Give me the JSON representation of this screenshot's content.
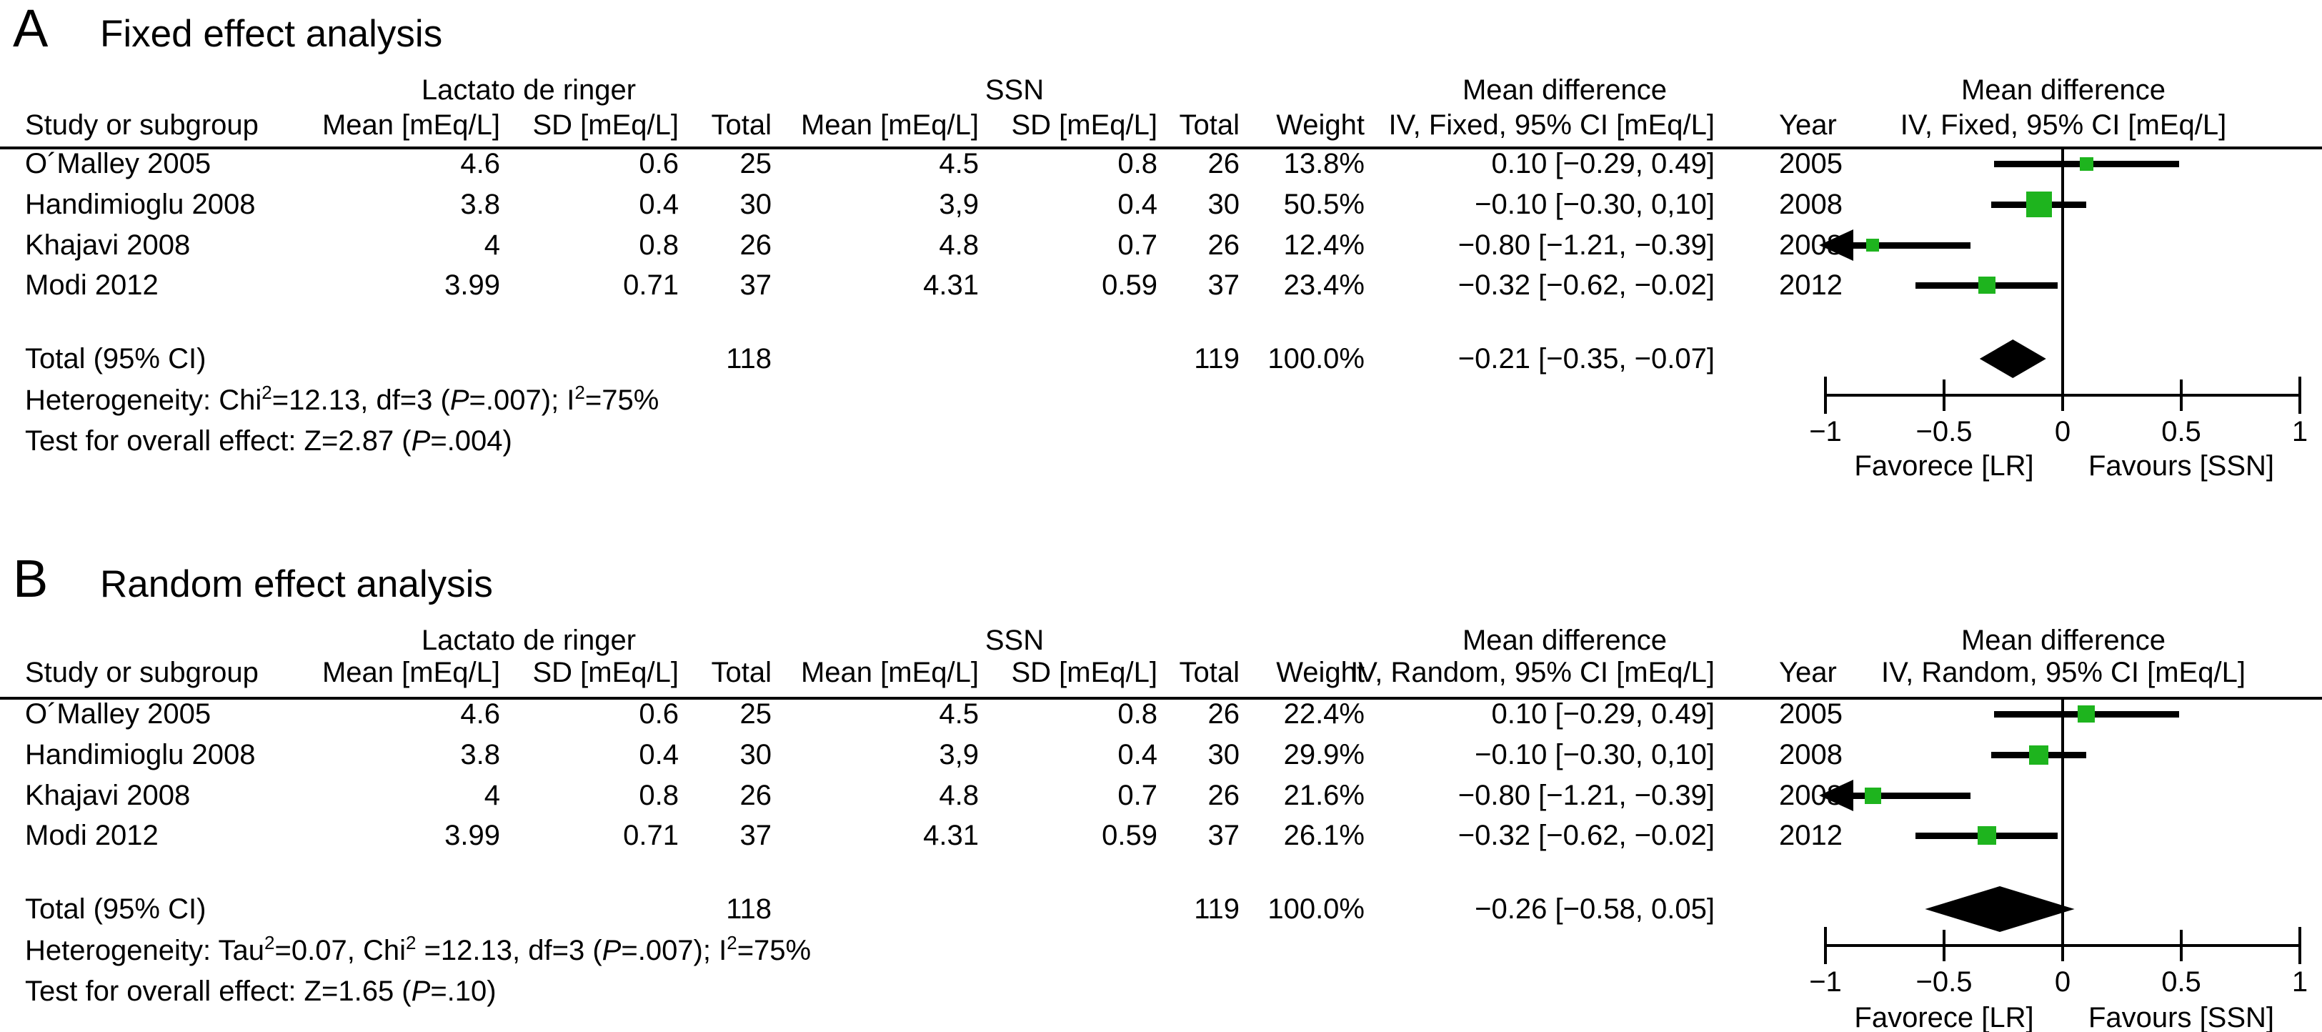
{
  "colors": {
    "marker": "#1eb41e",
    "ink": "#000000"
  },
  "figure": {
    "panels": [
      {
        "panel_letter": "A",
        "title": "Fixed effect analysis",
        "columns": {
          "study": "Study or subgroup",
          "group1": "Lactato de ringer",
          "group2": "SSN",
          "mean": "Mean [mEq/L]",
          "sd": "SD [mEq/L]",
          "total": "Total",
          "weight": "Weight",
          "md_header": "Mean difference",
          "md_subheader": "IV, Fixed, 95% CI [mEq/L]",
          "year": "Year"
        },
        "plot_header": "Mean difference",
        "plot_subheader": "IV, Fixed, 95% CI [mEq/L]",
        "rows": [
          {
            "study": "O´Malley 2005",
            "lr_mean": "4.6",
            "lr_sd": "0.6",
            "lr_total": "25",
            "ssn_mean": "4.5",
            "ssn_sd": "0.8",
            "ssn_total": "26",
            "weight": "13.8%",
            "ci_text": "0.10 [−0.29, 0.49]",
            "year": "2005",
            "md": 0.1,
            "ci_low": -0.29,
            "ci_high": 0.49,
            "weight_value": 13.8
          },
          {
            "study": "Handimioglu 2008",
            "lr_mean": "3.8",
            "lr_sd": "0.4",
            "lr_total": "30",
            "ssn_mean": "3,9",
            "ssn_sd": "0.4",
            "ssn_total": "30",
            "weight": "50.5%",
            "ci_text": "−0.10 [−0.30, 0,10]",
            "year": "2008",
            "md": -0.1,
            "ci_low": -0.3,
            "ci_high": 0.1,
            "weight_value": 50.5
          },
          {
            "study": "Khajavi 2008",
            "lr_mean": "4",
            "lr_sd": "0.8",
            "lr_total": "26",
            "ssn_mean": "4.8",
            "ssn_sd": "0.7",
            "ssn_total": "26",
            "weight": "12.4%",
            "ci_text": "−0.80 [−1.21, −0.39]",
            "year": "2008",
            "md": -0.8,
            "ci_low": -1.21,
            "ci_high": -0.39,
            "weight_value": 12.4
          },
          {
            "study": "Modi 2012",
            "lr_mean": "3.99",
            "lr_sd": "0.71",
            "lr_total": "37",
            "ssn_mean": "4.31",
            "ssn_sd": "0.59",
            "ssn_total": "37",
            "weight": "23.4%",
            "ci_text": "−0.32 [−0.62, −0.02]",
            "year": "2012",
            "md": -0.32,
            "ci_low": -0.62,
            "ci_high": -0.02,
            "weight_value": 23.4
          }
        ],
        "total_row": {
          "label": "Total (95% CI)",
          "lr_total": "118",
          "ssn_total": "119",
          "weight": "100.0%",
          "ci_text": "−0.21 [−0.35, −0.07]",
          "md": -0.21,
          "ci_low": -0.35,
          "ci_high": -0.07
        },
        "heterogeneity_parts": [
          {
            "t": "Heterogeneity: Chi"
          },
          {
            "t": "2",
            "s": "sup"
          },
          {
            "t": "=12.13, df=3 ("
          },
          {
            "t": "P",
            "s": "it"
          },
          {
            "t": "=.007); I"
          },
          {
            "t": "2",
            "s": "sup"
          },
          {
            "t": "=75%"
          }
        ],
        "overall_parts": [
          {
            "t": "Test for overall effect: Z=2.87 ("
          },
          {
            "t": "P",
            "s": "it"
          },
          {
            "t": "=.004)"
          }
        ],
        "axis": {
          "ticks": [
            "−1",
            "−0.5",
            "0",
            "0.5",
            "1"
          ],
          "tick_values": [
            -1,
            -0.5,
            0,
            0.5,
            1
          ],
          "left_label": "Favorece [LR]",
          "right_label": "Favours [SSN]"
        }
      },
      {
        "panel_letter": "B",
        "title": "Random effect analysis",
        "columns": {
          "study": "Study or subgroup",
          "group1": "Lactato de ringer",
          "group2": "SSN",
          "mean": "Mean [mEq/L]",
          "sd": "SD [mEq/L]",
          "total": "Total",
          "weight": "Weight",
          "md_header": "Mean difference",
          "md_subheader": "IV, Random, 95% CI [mEq/L]",
          "year": "Year"
        },
        "plot_header": "Mean difference",
        "plot_subheader": "IV, Random, 95% CI [mEq/L]",
        "rows": [
          {
            "study": "O´Malley 2005",
            "lr_mean": "4.6",
            "lr_sd": "0.6",
            "lr_total": "25",
            "ssn_mean": "4.5",
            "ssn_sd": "0.8",
            "ssn_total": "26",
            "weight": "22.4%",
            "ci_text": "0.10 [−0.29, 0.49]",
            "year": "2005",
            "md": 0.1,
            "ci_low": -0.29,
            "ci_high": 0.49,
            "weight_value": 22.4
          },
          {
            "study": "Handimioglu 2008",
            "lr_mean": "3.8",
            "lr_sd": "0.4",
            "lr_total": "30",
            "ssn_mean": "3,9",
            "ssn_sd": "0.4",
            "ssn_total": "30",
            "weight": "29.9%",
            "ci_text": "−0.10 [−0.30, 0,10]",
            "year": "2008",
            "md": -0.1,
            "ci_low": -0.3,
            "ci_high": 0.1,
            "weight_value": 29.9
          },
          {
            "study": "Khajavi 2008",
            "lr_mean": "4",
            "lr_sd": "0.8",
            "lr_total": "26",
            "ssn_mean": "4.8",
            "ssn_sd": "0.7",
            "ssn_total": "26",
            "weight": "21.6%",
            "ci_text": "−0.80 [−1.21, −0.39]",
            "year": "2008",
            "md": -0.8,
            "ci_low": -1.21,
            "ci_high": -0.39,
            "weight_value": 21.6
          },
          {
            "study": "Modi 2012",
            "lr_mean": "3.99",
            "lr_sd": "0.71",
            "lr_total": "37",
            "ssn_mean": "4.31",
            "ssn_sd": "0.59",
            "ssn_total": "37",
            "weight": "26.1%",
            "ci_text": "−0.32 [−0.62, −0.02]",
            "year": "2012",
            "md": -0.32,
            "ci_low": -0.62,
            "ci_high": -0.02,
            "weight_value": 26.1
          }
        ],
        "total_row": {
          "label": "Total (95% CI)",
          "lr_total": "118",
          "ssn_total": "119",
          "weight": "100.0%",
          "ci_text": "−0.26 [−0.58, 0.05]",
          "md": -0.26,
          "ci_low": -0.58,
          "ci_high": 0.05
        },
        "heterogeneity_parts": [
          {
            "t": "Heterogeneity: Tau"
          },
          {
            "t": "2",
            "s": "sup"
          },
          {
            "t": "=0.07, Chi"
          },
          {
            "t": "2",
            "s": "sup"
          },
          {
            "t": " =12.13, df=3 ("
          },
          {
            "t": "P",
            "s": "it"
          },
          {
            "t": "=.007); I"
          },
          {
            "t": "2",
            "s": "sup"
          },
          {
            "t": "=75%"
          }
        ],
        "overall_parts": [
          {
            "t": "Test for overall effect: Z=1.65 ("
          },
          {
            "t": "P",
            "s": "it"
          },
          {
            "t": "=.10)"
          }
        ],
        "axis": {
          "ticks": [
            "−1",
            "−0.5",
            "0",
            "0.5",
            "1"
          ],
          "tick_values": [
            -1,
            -0.5,
            0,
            0.5,
            1
          ],
          "left_label": "Favorece [LR]",
          "right_label": "Favours [SSN]"
        }
      }
    ]
  },
  "chart_data": [
    {
      "type": "forest",
      "title": "Fixed effect analysis",
      "effect_measure": "Mean difference IV, Fixed, 95% CI [mEq/L]",
      "xlim": [
        -1,
        1
      ],
      "x_ticks": [
        -1,
        -0.5,
        0,
        0.5,
        1
      ],
      "x_left_label": "Favorece [LR]",
      "x_right_label": "Favours [SSN]",
      "studies": [
        {
          "study": "O´Malley 2005",
          "year": 2005,
          "lr": {
            "mean": 4.6,
            "sd": 0.6,
            "n": 25
          },
          "ssn": {
            "mean": 4.5,
            "sd": 0.8,
            "n": 26
          },
          "weight_pct": 13.8,
          "md": 0.1,
          "ci": [
            -0.29,
            0.49
          ]
        },
        {
          "study": "Handimioglu 2008",
          "year": 2008,
          "lr": {
            "mean": 3.8,
            "sd": 0.4,
            "n": 30
          },
          "ssn": {
            "mean": 3.9,
            "sd": 0.4,
            "n": 30
          },
          "weight_pct": 50.5,
          "md": -0.1,
          "ci": [
            -0.3,
            0.1
          ]
        },
        {
          "study": "Khajavi 2008",
          "year": 2008,
          "lr": {
            "mean": 4,
            "sd": 0.8,
            "n": 26
          },
          "ssn": {
            "mean": 4.8,
            "sd": 0.7,
            "n": 26
          },
          "weight_pct": 12.4,
          "md": -0.8,
          "ci": [
            -1.21,
            -0.39
          ]
        },
        {
          "study": "Modi 2012",
          "year": 2012,
          "lr": {
            "mean": 3.99,
            "sd": 0.71,
            "n": 37
          },
          "ssn": {
            "mean": 4.31,
            "sd": 0.59,
            "n": 37
          },
          "weight_pct": 23.4,
          "md": -0.32,
          "ci": [
            -0.62,
            -0.02
          ]
        }
      ],
      "total": {
        "label": "Total (95% CI)",
        "lr_n": 118,
        "ssn_n": 119,
        "weight_pct": 100.0,
        "md": -0.21,
        "ci": [
          -0.35,
          -0.07
        ]
      },
      "heterogeneity": "Chi2=12.13, df=3 (P=.007); I2=75%",
      "overall_effect": "Z=2.87 (P=.004)"
    },
    {
      "type": "forest",
      "title": "Random effect analysis",
      "effect_measure": "Mean difference IV, Random, 95% CI [mEq/L]",
      "xlim": [
        -1,
        1
      ],
      "x_ticks": [
        -1,
        -0.5,
        0,
        0.5,
        1
      ],
      "x_left_label": "Favorece [LR]",
      "x_right_label": "Favours [SSN]",
      "studies": [
        {
          "study": "O´Malley 2005",
          "year": 2005,
          "lr": {
            "mean": 4.6,
            "sd": 0.6,
            "n": 25
          },
          "ssn": {
            "mean": 4.5,
            "sd": 0.8,
            "n": 26
          },
          "weight_pct": 22.4,
          "md": 0.1,
          "ci": [
            -0.29,
            0.49
          ]
        },
        {
          "study": "Handimioglu 2008",
          "year": 2008,
          "lr": {
            "mean": 3.8,
            "sd": 0.4,
            "n": 30
          },
          "ssn": {
            "mean": 3.9,
            "sd": 0.4,
            "n": 30
          },
          "weight_pct": 29.9,
          "md": -0.1,
          "ci": [
            -0.3,
            0.1
          ]
        },
        {
          "study": "Khajavi 2008",
          "year": 2008,
          "lr": {
            "mean": 4,
            "sd": 0.8,
            "n": 26
          },
          "ssn": {
            "mean": 4.8,
            "sd": 0.7,
            "n": 26
          },
          "weight_pct": 21.6,
          "md": -0.8,
          "ci": [
            -1.21,
            -0.39
          ]
        },
        {
          "study": "Modi 2012",
          "year": 2012,
          "lr": {
            "mean": 3.99,
            "sd": 0.71,
            "n": 37
          },
          "ssn": {
            "mean": 4.31,
            "sd": 0.59,
            "n": 37
          },
          "weight_pct": 26.1,
          "md": -0.32,
          "ci": [
            -0.62,
            -0.02
          ]
        }
      ],
      "total": {
        "label": "Total (95% CI)",
        "lr_n": 118,
        "ssn_n": 119,
        "weight_pct": 100.0,
        "md": -0.26,
        "ci": [
          -0.58,
          0.05
        ]
      },
      "heterogeneity": "Tau2=0.07, Chi2=12.13, df=3 (P=.007); I2=75%",
      "overall_effect": "Z=1.65 (P=.10)"
    }
  ]
}
